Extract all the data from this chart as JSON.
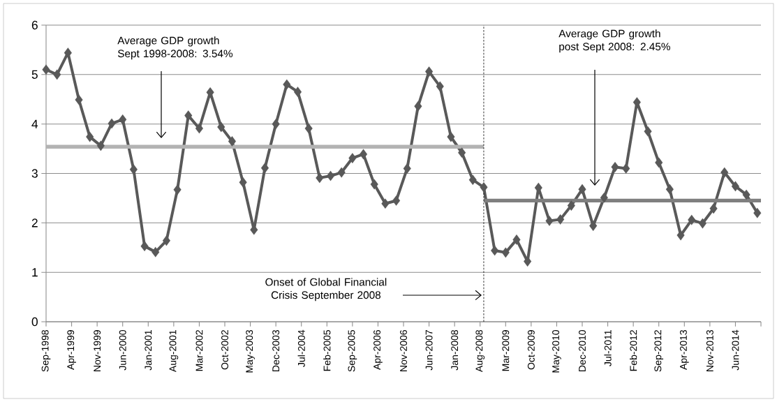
{
  "chart_data": {
    "type": "line",
    "series": [
      {
        "color": "#595959",
        "marker": "diamond",
        "x": [
          "1998-09",
          "1998-12",
          "1999-03",
          "1999-06",
          "1999-09",
          "1999-12",
          "2000-03",
          "2000-06",
          "2000-09",
          "2000-12",
          "2001-03",
          "2001-06",
          "2001-09",
          "2001-12",
          "2002-03",
          "2002-06",
          "2002-09",
          "2002-12",
          "2003-03",
          "2003-06",
          "2003-09",
          "2003-12",
          "2004-03",
          "2004-06",
          "2004-09",
          "2004-12",
          "2005-03",
          "2005-06",
          "2005-09",
          "2005-12",
          "2006-03",
          "2006-06",
          "2006-09",
          "2006-12",
          "2007-03",
          "2007-06",
          "2007-09",
          "2007-12",
          "2008-03",
          "2008-06",
          "2008-09",
          "2008-12",
          "2009-03",
          "2009-06",
          "2009-09",
          "2009-12",
          "2010-03",
          "2010-06",
          "2010-09",
          "2010-12",
          "2011-03",
          "2011-06",
          "2011-09",
          "2011-12",
          "2012-03",
          "2012-06",
          "2012-09",
          "2012-12",
          "2013-03",
          "2013-06",
          "2013-09",
          "2013-12",
          "2014-03",
          "2014-06",
          "2014-09",
          "2014-12"
        ],
        "values": [
          5.1,
          5.0,
          5.44,
          4.49,
          3.74,
          3.56,
          4.01,
          4.09,
          3.08,
          1.53,
          1.41,
          1.64,
          2.67,
          4.17,
          3.91,
          4.64,
          3.94,
          3.65,
          2.82,
          1.86,
          3.11,
          4.0,
          4.8,
          4.65,
          3.91,
          2.91,
          2.95,
          3.02,
          3.31,
          3.39,
          2.78,
          2.39,
          2.45,
          3.1,
          4.36,
          5.06,
          4.76,
          3.74,
          3.42,
          2.87,
          2.72,
          1.44,
          1.4,
          1.66,
          1.22,
          2.71,
          2.04,
          2.07,
          2.35,
          2.68,
          1.94,
          2.51,
          3.13,
          3.1,
          4.44,
          3.85,
          3.22,
          2.68,
          1.75,
          2.06,
          1.99,
          2.29,
          3.02,
          2.74,
          2.57,
          2.2
        ]
      },
      {
        "color": "#b3b3b3",
        "marker": "none",
        "x": [
          "1998-09",
          "2008-09"
        ],
        "values": [
          3.54,
          3.54
        ]
      },
      {
        "color": "#7f7f7f",
        "marker": "none",
        "x": [
          "2008-09",
          "2015-01"
        ],
        "values": [
          2.45,
          2.45
        ]
      }
    ],
    "xlim": [
      "1998-09",
      "2015-01"
    ],
    "xticks": [
      {
        "value": "1998-09",
        "label": "Sep-1998"
      },
      {
        "value": "1999-04",
        "label": "Apr-1999"
      },
      {
        "value": "1999-11",
        "label": "Nov-1999"
      },
      {
        "value": "2000-06",
        "label": "Jun-2000"
      },
      {
        "value": "2001-01",
        "label": "Jan-2001"
      },
      {
        "value": "2001-08",
        "label": "Aug-2001"
      },
      {
        "value": "2002-03",
        "label": "Mar-2002"
      },
      {
        "value": "2002-10",
        "label": "Oct-2002"
      },
      {
        "value": "2003-05",
        "label": "May-2003"
      },
      {
        "value": "2003-12",
        "label": "Dec-2003"
      },
      {
        "value": "2004-07",
        "label": "Jul-2004"
      },
      {
        "value": "2005-02",
        "label": "Feb-2005"
      },
      {
        "value": "2005-09",
        "label": "Sep-2005"
      },
      {
        "value": "2006-04",
        "label": "Apr-2006"
      },
      {
        "value": "2006-11",
        "label": "Nov-2006"
      },
      {
        "value": "2007-06",
        "label": "Jun-2007"
      },
      {
        "value": "2008-01",
        "label": "Jan-2008"
      },
      {
        "value": "2008-08",
        "label": "Aug-2008"
      },
      {
        "value": "2009-03",
        "label": "Mar-2009"
      },
      {
        "value": "2009-10",
        "label": "Oct-2009"
      },
      {
        "value": "2010-05",
        "label": "May-2010"
      },
      {
        "value": "2010-12",
        "label": "Dec-2010"
      },
      {
        "value": "2011-07",
        "label": "Jul-2011"
      },
      {
        "value": "2012-02",
        "label": "Feb-2012"
      },
      {
        "value": "2012-09",
        "label": "Sep-2012"
      },
      {
        "value": "2013-04",
        "label": "Apr-2013"
      },
      {
        "value": "2013-11",
        "label": "Nov-2013"
      },
      {
        "value": "2014-06",
        "label": "Jun-2014"
      },
      {
        "value": "2015-01",
        "label": null
      }
    ],
    "ylim": [
      0,
      6
    ],
    "yticks": [
      0,
      1,
      2,
      3,
      4,
      5,
      6
    ],
    "grid": "y",
    "ref_lines": [
      {
        "axis": "x",
        "value": "2008-09",
        "color": "#000000",
        "line_style": "dashed"
      }
    ],
    "annotations": [
      "Average GDP growth Sept 1998-2008: 3.54%",
      "Average GDP growth post Sept 2008: 2.45%",
      "Onset of Global Financial Crisis September 2008"
    ]
  }
}
